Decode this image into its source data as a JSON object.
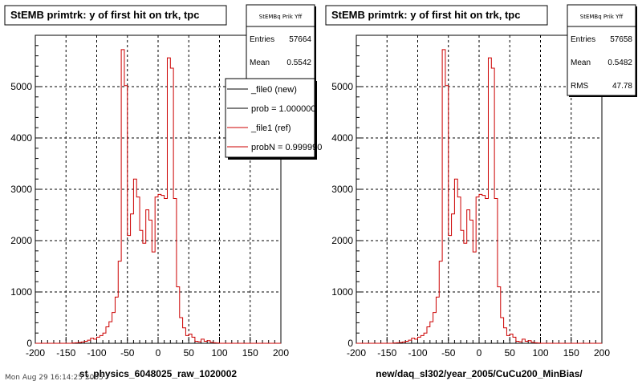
{
  "footer": "Mon Aug 29 16:14:25 2005",
  "chart_data": [
    {
      "type": "histogram",
      "title": "StEMB primtrk: y of first hit on trk, tpc",
      "xlabel": "st_physics_6048025_raw_1020002",
      "ylabel": "",
      "xlim": [
        -200,
        200
      ],
      "ylim": [
        0,
        6000
      ],
      "xticks": [
        -200,
        -150,
        -100,
        -50,
        0,
        50,
        100,
        150,
        200
      ],
      "yticks": [
        0,
        1000,
        2000,
        3000,
        4000,
        5000
      ],
      "grid": true,
      "stats": {
        "name": "StEMBq Prik Yff",
        "entries_label": "Entries",
        "entries": "57664",
        "mean_label": "Mean",
        "mean": "0.5542"
      },
      "legend": {
        "placement": "top-right",
        "entries": [
          {
            "label": "_file0 (new)",
            "color": "#000000"
          },
          {
            "label": "prob = 1.000000",
            "color": "#000000"
          },
          {
            "label": "_file1 (ref)",
            "color": "#cc0000"
          },
          {
            "label": "probN = 0.999990",
            "color": "#cc0000"
          }
        ]
      },
      "series": [
        {
          "color": "#cc0000",
          "bin_width": 5,
          "x_start": -200,
          "values": [
            0,
            0,
            0,
            0,
            0,
            0,
            0,
            0,
            0,
            0,
            0,
            0,
            5,
            10,
            15,
            25,
            40,
            60,
            100,
            80,
            120,
            150,
            200,
            320,
            420,
            600,
            900,
            1600,
            5720,
            5020,
            2100,
            2520,
            3200,
            2850,
            2200,
            1950,
            2600,
            2400,
            1780,
            2850,
            2900,
            2880,
            2820,
            5560,
            5360,
            2820,
            1100,
            500,
            300,
            150,
            180,
            120,
            40,
            30,
            80,
            40,
            50,
            20,
            10,
            5,
            0,
            0,
            0,
            0,
            0,
            0,
            0,
            0,
            0,
            0,
            0,
            0,
            0,
            0,
            0,
            0,
            0,
            0,
            0,
            0
          ]
        }
      ]
    },
    {
      "type": "histogram",
      "title": "StEMB primtrk: y of first hit on trk, tpc",
      "xlabel": "new/daq_sl302/year_2005/CuCu200_MinBias/",
      "ylabel": "",
      "xlim": [
        -200,
        200
      ],
      "ylim": [
        0,
        6000
      ],
      "xticks": [
        -200,
        -150,
        -100,
        -50,
        0,
        50,
        100,
        150,
        200
      ],
      "yticks": [
        0,
        1000,
        2000,
        3000,
        4000,
        5000
      ],
      "grid": true,
      "stats": {
        "name": "StEMBq Prik Yff",
        "entries_label": "Entries",
        "entries": "57658",
        "mean_label": "Mean",
        "mean": "0.5482",
        "rms_label": "RMS",
        "rms": "47.78"
      },
      "series": [
        {
          "color": "#cc0000",
          "bin_width": 5,
          "x_start": -200,
          "values": [
            0,
            0,
            0,
            0,
            0,
            0,
            0,
            0,
            0,
            0,
            0,
            0,
            5,
            10,
            15,
            25,
            40,
            60,
            100,
            80,
            120,
            150,
            200,
            320,
            420,
            600,
            900,
            1600,
            5720,
            5020,
            2100,
            2520,
            3200,
            2850,
            2200,
            1950,
            2600,
            2400,
            1780,
            2850,
            2900,
            2880,
            2820,
            5560,
            5360,
            2820,
            1100,
            500,
            300,
            150,
            180,
            120,
            40,
            30,
            80,
            40,
            50,
            20,
            10,
            5,
            0,
            0,
            0,
            0,
            0,
            0,
            0,
            0,
            0,
            0,
            0,
            0,
            0,
            0,
            0,
            0,
            0,
            0,
            0,
            0
          ]
        }
      ]
    }
  ]
}
